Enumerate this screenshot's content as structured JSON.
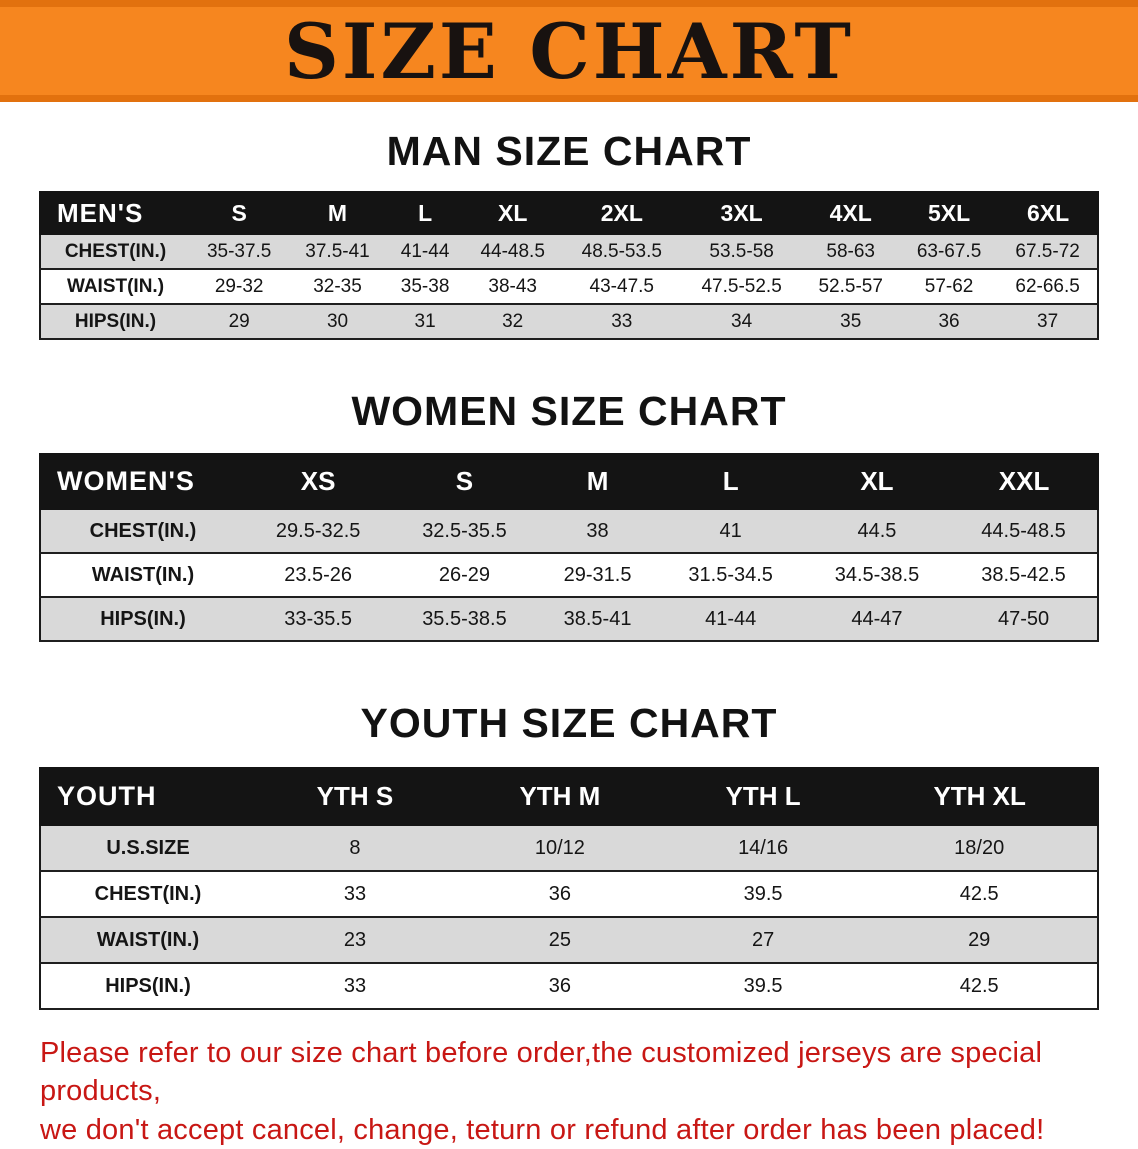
{
  "banner": {
    "title": "SIZE CHART"
  },
  "colors": {
    "banner_bg": "#f6861f",
    "banner_edge": "#e2710e",
    "table_header_bg": "#141414",
    "row_alt_gray": "#d9d9d9",
    "footer_red": "#c81714"
  },
  "men": {
    "heading": "MAN SIZE CHART",
    "table": {
      "header": [
        "MEN'S",
        "S",
        "M",
        "L",
        "XL",
        "2XL",
        "3XL",
        "4XL",
        "5XL",
        "6XL"
      ],
      "rows": [
        [
          "CHEST(IN.)",
          "35-37.5",
          "37.5-41",
          "41-44",
          "44-48.5",
          "48.5-53.5",
          "53.5-58",
          "58-63",
          "63-67.5",
          "67.5-72"
        ],
        [
          "WAIST(IN.)",
          "29-32",
          "32-35",
          "35-38",
          "38-43",
          "43-47.5",
          "47.5-52.5",
          "52.5-57",
          "57-62",
          "62-66.5"
        ],
        [
          "HIPS(IN.)",
          "29",
          "30",
          "31",
          "32",
          "33",
          "34",
          "35",
          "36",
          "37"
        ]
      ]
    }
  },
  "women": {
    "heading": "WOMEN SIZE CHART",
    "table": {
      "header": [
        "WOMEN'S",
        "XS",
        "S",
        "M",
        "L",
        "XL",
        "XXL"
      ],
      "rows": [
        [
          "CHEST(IN.)",
          "29.5-32.5",
          "32.5-35.5",
          "38",
          "41",
          "44.5",
          "44.5-48.5"
        ],
        [
          "WAIST(IN.)",
          "23.5-26",
          "26-29",
          "29-31.5",
          "31.5-34.5",
          "34.5-38.5",
          "38.5-42.5"
        ],
        [
          "HIPS(IN.)",
          "33-35.5",
          "35.5-38.5",
          "38.5-41",
          "41-44",
          "44-47",
          "47-50"
        ]
      ]
    }
  },
  "youth": {
    "heading": "YOUTH SIZE CHART",
    "table": {
      "header": [
        "YOUTH",
        "YTH S",
        "YTH M",
        "YTH L",
        "YTH XL"
      ],
      "rows": [
        [
          "U.S.SIZE",
          "8",
          "10/12",
          "14/16",
          "18/20"
        ],
        [
          "CHEST(IN.)",
          "33",
          "36",
          "39.5",
          "42.5"
        ],
        [
          "WAIST(IN.)",
          "23",
          "25",
          "27",
          "29"
        ],
        [
          "HIPS(IN.)",
          "33",
          "36",
          "39.5",
          "42.5"
        ]
      ]
    }
  },
  "footer": {
    "line1": "Please refer to our size chart before order,the customized jerseys are special products,",
    "line2": "we don't accept cancel, change, teturn or refund after order has been placed!"
  }
}
